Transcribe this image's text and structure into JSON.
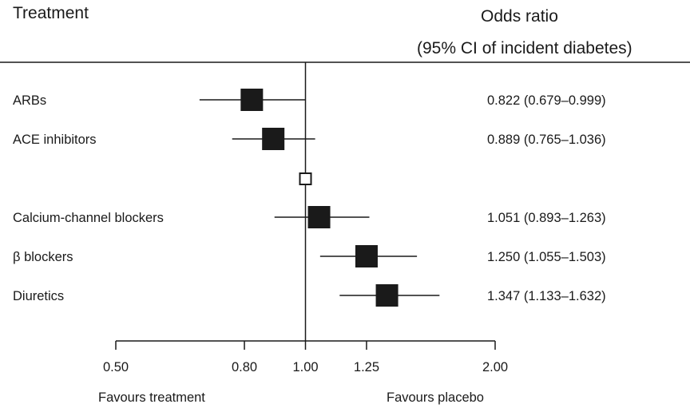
{
  "header": {
    "treatment_label": "Treatment",
    "measure_line1": "Odds ratio",
    "measure_line2": "(95% CI of incident diabetes)"
  },
  "chart_data": {
    "type": "forest",
    "scale": "log",
    "xlim": [
      0.5,
      2.0
    ],
    "reference_value": 1.0,
    "xticks": [
      0.5,
      0.8,
      1.0,
      1.25,
      2.0
    ],
    "xtick_labels": [
      "0.50",
      "0.80",
      "1.00",
      "1.25",
      "2.00"
    ],
    "favours_left": "Favours treatment",
    "favours_right": "Favours placebo",
    "rows": [
      {
        "label": "ARBs",
        "or": 0.822,
        "lo": 0.679,
        "hi": 0.999,
        "text": "0.822 (0.679–0.999)",
        "marker": "filled"
      },
      {
        "label": "ACE inhibitors",
        "or": 0.889,
        "lo": 0.765,
        "hi": 1.036,
        "text": "0.889 (0.765–1.036)",
        "marker": "filled"
      },
      {
        "label": "",
        "or": 1.0,
        "lo": null,
        "hi": null,
        "text": "",
        "marker": "open"
      },
      {
        "label": "Calcium-channel blockers",
        "or": 1.051,
        "lo": 0.893,
        "hi": 1.263,
        "text": "1.051 (0.893–1.263)",
        "marker": "filled"
      },
      {
        "label": "β blockers",
        "or": 1.25,
        "lo": 1.055,
        "hi": 1.503,
        "text": "1.250 (1.055–1.503)",
        "marker": "filled"
      },
      {
        "label": "Diuretics",
        "or": 1.347,
        "lo": 1.133,
        "hi": 1.632,
        "text": "1.347 (1.133–1.632)",
        "marker": "filled"
      }
    ]
  }
}
